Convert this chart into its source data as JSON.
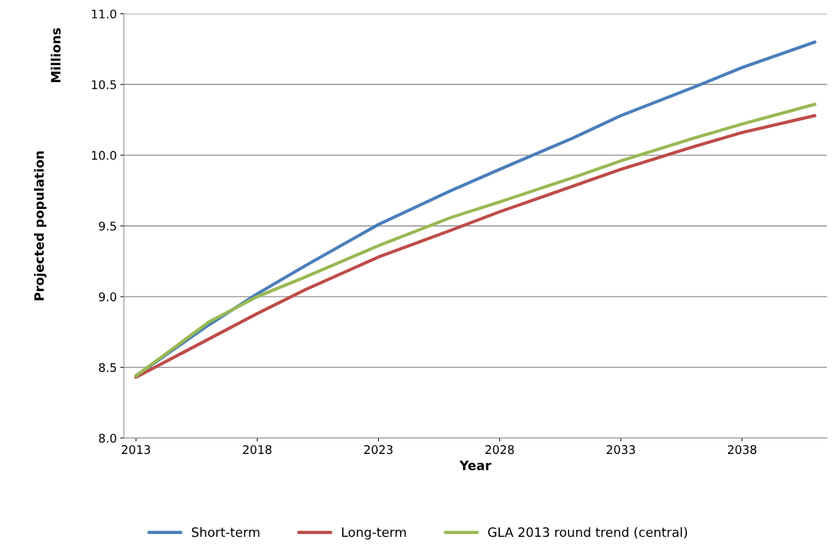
{
  "chart_data": {
    "type": "line",
    "xlabel": "Year",
    "ylabel": "Projected population",
    "annotations": [
      "Millions"
    ],
    "xlim": [
      2012.5,
      2041.5
    ],
    "xticks": [
      2013,
      2018,
      2023,
      2028,
      2033,
      2038
    ],
    "ylim": [
      8.0,
      11.0
    ],
    "yticks": [
      {
        "value": 8.0,
        "label": "8.0"
      },
      {
        "value": 8.5,
        "label": "8.5"
      },
      {
        "value": 9.0,
        "label": "9.0"
      },
      {
        "value": 9.5,
        "label": "9.5"
      },
      {
        "value": 10.0,
        "label": "10.0"
      },
      {
        "value": 10.5,
        "label": "10.5"
      },
      {
        "value": 11.0,
        "label": "11.0"
      }
    ],
    "grid": "y",
    "legend": "bottom",
    "marker": "none",
    "line_style": "solid",
    "x": [
      2013,
      2016,
      2018,
      2020,
      2023,
      2026,
      2028,
      2031,
      2033,
      2036,
      2038,
      2041
    ],
    "series": [
      {
        "name": "Short-term",
        "color": "#4a7ebb",
        "values": [
          8.44,
          8.8,
          9.02,
          9.22,
          9.51,
          9.75,
          9.9,
          10.12,
          10.28,
          10.48,
          10.62,
          10.8
        ]
      },
      {
        "name": "Long-term",
        "color": "#be4b48",
        "values": [
          8.43,
          8.7,
          8.88,
          9.05,
          9.28,
          9.47,
          9.6,
          9.78,
          9.9,
          10.06,
          10.16,
          10.28
        ]
      },
      {
        "name": "GLA 2013 round trend (central)",
        "color": "#98b954",
        "values": [
          8.44,
          8.82,
          9.0,
          9.14,
          9.36,
          9.56,
          9.67,
          9.84,
          9.96,
          10.12,
          10.22,
          10.36
        ]
      }
    ]
  }
}
